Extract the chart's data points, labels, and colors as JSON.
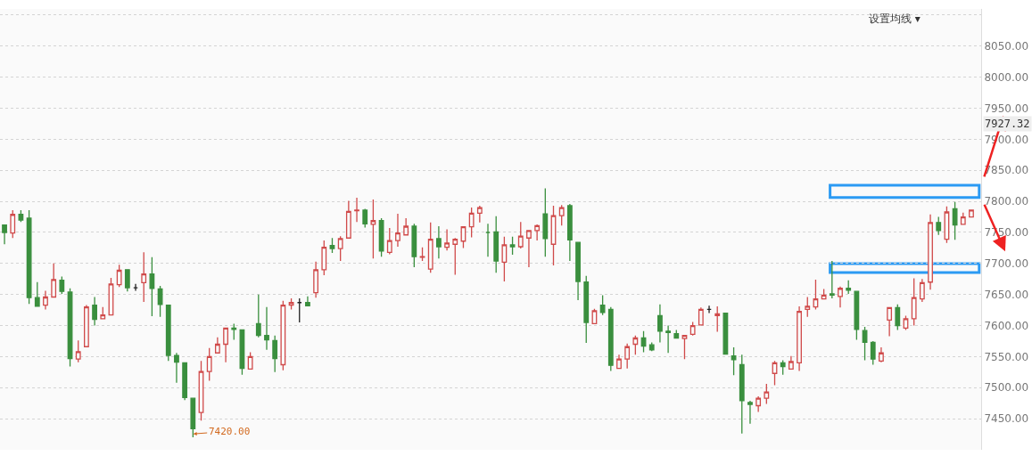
{
  "chart_data": {
    "type": "candlestick",
    "categories": [
      null,
      null,
      null,
      null,
      null,
      null,
      null,
      null,
      null,
      null,
      null,
      null,
      null,
      null,
      null,
      null,
      null,
      null,
      null,
      null,
      null,
      null,
      null,
      null,
      null,
      null,
      null,
      null,
      null,
      null,
      null,
      null,
      null,
      null,
      null,
      null,
      null,
      null,
      null,
      null,
      null,
      null,
      null,
      null,
      null,
      null,
      null,
      null,
      null,
      null,
      null,
      null,
      null,
      null,
      null,
      null,
      null,
      null,
      null,
      null,
      null,
      null,
      null,
      null,
      null,
      null,
      null,
      null,
      null,
      null,
      null,
      null,
      null,
      null,
      null,
      null,
      null,
      null,
      null,
      null,
      null,
      null,
      null,
      null,
      null,
      null,
      null,
      null,
      null,
      null,
      null,
      null,
      null,
      null,
      null,
      null,
      null,
      null,
      null,
      null,
      null,
      null,
      null,
      null,
      null,
      null,
      null,
      null,
      null,
      null,
      null,
      null,
      null,
      null,
      null,
      null,
      null,
      null,
      null
    ],
    "ohlc": [
      [
        7762,
        7762,
        7731,
        7750
      ],
      [
        7749,
        7786,
        7741,
        7779
      ],
      [
        7779,
        7786,
        7767,
        7770
      ],
      [
        7773,
        7786,
        7635,
        7645
      ],
      [
        7645,
        7670,
        7631,
        7631
      ],
      [
        7633,
        7656,
        7626,
        7646
      ],
      [
        7646,
        7700,
        7646,
        7674
      ],
      [
        7673,
        7679,
        7651,
        7655
      ],
      [
        7654,
        7660,
        7534,
        7547
      ],
      [
        7546,
        7576,
        7541,
        7558
      ],
      [
        7566,
        7633,
        7566,
        7630
      ],
      [
        7633,
        7646,
        7600,
        7610
      ],
      [
        7611,
        7630,
        7610,
        7617
      ],
      [
        7617,
        7677,
        7617,
        7667
      ],
      [
        7666,
        7698,
        7662,
        7689
      ],
      [
        7690,
        7690,
        7655,
        7661
      ],
      [
        7661,
        7667,
        7656,
        7661
      ],
      [
        7669,
        7718,
        7638,
        7683
      ],
      [
        7683,
        7710,
        7615,
        7660
      ],
      [
        7659,
        7664,
        7614,
        7634
      ],
      [
        7633,
        7633,
        7543,
        7552
      ],
      [
        7552,
        7556,
        7508,
        7541
      ],
      [
        7540,
        7540,
        7480,
        7484
      ],
      [
        7483,
        7483,
        7420,
        7434
      ],
      [
        7460,
        7543,
        7447,
        7526
      ],
      [
        7526,
        7564,
        7511,
        7550
      ],
      [
        7556,
        7581,
        7556,
        7570
      ],
      [
        7570,
        7596,
        7541,
        7596
      ],
      [
        7596,
        7603,
        7577,
        7594
      ],
      [
        7593,
        7593,
        7521,
        7531
      ],
      [
        7530,
        7557,
        7530,
        7550
      ],
      [
        7603,
        7650,
        7581,
        7584
      ],
      [
        7584,
        7630,
        7561,
        7577
      ],
      [
        7576,
        7584,
        7525,
        7547
      ],
      [
        7537,
        7640,
        7528,
        7633
      ],
      [
        7633,
        7644,
        7626,
        7637
      ],
      [
        7637,
        7644,
        7605,
        7637
      ],
      [
        7637,
        7647,
        7631,
        7632
      ],
      [
        7653,
        7703,
        7645,
        7690
      ],
      [
        7690,
        7737,
        7681,
        7726
      ],
      [
        7729,
        7741,
        7717,
        7724
      ],
      [
        7724,
        7744,
        7704,
        7740
      ],
      [
        7741,
        7801,
        7741,
        7784
      ],
      [
        7785,
        7806,
        7767,
        7786
      ],
      [
        7786,
        7788,
        7758,
        7764
      ],
      [
        7763,
        7803,
        7708,
        7769
      ],
      [
        7769,
        7773,
        7711,
        7720
      ],
      [
        7718,
        7757,
        7715,
        7737
      ],
      [
        7737,
        7780,
        7727,
        7749
      ],
      [
        7746,
        7773,
        7746,
        7760
      ],
      [
        7760,
        7764,
        7694,
        7711
      ],
      [
        7710,
        7726,
        7704,
        7711
      ],
      [
        7691,
        7766,
        7685,
        7739
      ],
      [
        7740,
        7760,
        7708,
        7727
      ],
      [
        7726,
        7755,
        7721,
        7733
      ],
      [
        7731,
        7741,
        7682,
        7739
      ],
      [
        7736,
        7760,
        7725,
        7759
      ],
      [
        7759,
        7790,
        7742,
        7781
      ],
      [
        7781,
        7793,
        7766,
        7790
      ],
      [
        7750,
        7764,
        7711,
        7750
      ],
      [
        7751,
        7776,
        7685,
        7704
      ],
      [
        7702,
        7743,
        7671,
        7730
      ],
      [
        7730,
        7743,
        7714,
        7727
      ],
      [
        7727,
        7767,
        7724,
        7744
      ],
      [
        7741,
        7754,
        7694,
        7753
      ],
      [
        7753,
        7763,
        7737,
        7761
      ],
      [
        7780,
        7821,
        7711,
        7740
      ],
      [
        7731,
        7793,
        7697,
        7777
      ],
      [
        7777,
        7794,
        7761,
        7790
      ],
      [
        7793,
        7796,
        7704,
        7738
      ],
      [
        7734,
        7734,
        7641,
        7671
      ],
      [
        7670,
        7680,
        7572,
        7605
      ],
      [
        7603,
        7627,
        7603,
        7624
      ],
      [
        7633,
        7649,
        7617,
        7621
      ],
      [
        7626,
        7630,
        7527,
        7536
      ],
      [
        7531,
        7553,
        7531,
        7546
      ],
      [
        7546,
        7571,
        7531,
        7566
      ],
      [
        7570,
        7584,
        7553,
        7580
      ],
      [
        7580,
        7591,
        7557,
        7567
      ],
      [
        7569,
        7573,
        7559,
        7561
      ],
      [
        7616,
        7634,
        7573,
        7591
      ],
      [
        7591,
        7600,
        7556,
        7589
      ],
      [
        7587,
        7593,
        7579,
        7580
      ],
      [
        7579,
        7584,
        7546,
        7584
      ],
      [
        7586,
        7606,
        7584,
        7600
      ],
      [
        7601,
        7629,
        7601,
        7626
      ],
      [
        7626,
        7632,
        7620,
        7626
      ],
      [
        7616,
        7631,
        7590,
        7619
      ],
      [
        7620,
        7620,
        7554,
        7554
      ],
      [
        7551,
        7565,
        7520,
        7545
      ],
      [
        7537,
        7553,
        7426,
        7479
      ],
      [
        7476,
        7479,
        7442,
        7473
      ],
      [
        7471,
        7486,
        7461,
        7483
      ],
      [
        7483,
        7506,
        7474,
        7493
      ],
      [
        7523,
        7543,
        7504,
        7540
      ],
      [
        7540,
        7544,
        7521,
        7534
      ],
      [
        7530,
        7551,
        7530,
        7542
      ],
      [
        7540,
        7631,
        7527,
        7623
      ],
      [
        7626,
        7646,
        7614,
        7631
      ],
      [
        7630,
        7674,
        7626,
        7643
      ],
      [
        7643,
        7659,
        7643,
        7649
      ],
      [
        7651,
        7704,
        7644,
        7649
      ],
      [
        7647,
        7663,
        7629,
        7660
      ],
      [
        7660,
        7673,
        7651,
        7657
      ],
      [
        7655,
        7655,
        7577,
        7594
      ],
      [
        7592,
        7598,
        7544,
        7573
      ],
      [
        7573,
        7575,
        7537,
        7546
      ],
      [
        7543,
        7565,
        7541,
        7556
      ],
      [
        7609,
        7629,
        7583,
        7629
      ],
      [
        7629,
        7634,
        7593,
        7600
      ],
      [
        7596,
        7616,
        7593,
        7611
      ],
      [
        7611,
        7676,
        7600,
        7645
      ],
      [
        7643,
        7675,
        7638,
        7669
      ],
      [
        7670,
        7779,
        7658,
        7766
      ],
      [
        7766,
        7775,
        7746,
        7753
      ],
      [
        7739,
        7792,
        7733,
        7783
      ],
      [
        7788,
        7799,
        7738,
        7762
      ],
      [
        7763,
        7782,
        7762,
        7775
      ],
      [
        7775,
        7786,
        7775,
        7786
      ]
    ],
    "colors": [
      "#3a8f3e",
      "#d04a4a",
      "#3a8f3e",
      "#3a8f3e",
      "#3a8f3e",
      "#d04a4a",
      "#d04a4a",
      "#3a8f3e",
      "#3a8f3e",
      "#d04a4a",
      "#d04a4a",
      "#3a8f3e",
      "#d04a4a",
      "#d04a4a",
      "#d04a4a",
      "#3a8f3e",
      "#222222",
      "#d04a4a",
      "#3a8f3e",
      "#3a8f3e",
      "#3a8f3e",
      "#3a8f3e",
      "#3a8f3e",
      "#3a8f3e",
      "#d04a4a",
      "#d04a4a",
      "#d04a4a",
      "#d04a4a",
      "#3a8f3e",
      "#3a8f3e",
      "#d04a4a",
      "#3a8f3e",
      "#3a8f3e",
      "#3a8f3e",
      "#d04a4a",
      "#d04a4a",
      "#222222",
      "#3a8f3e",
      "#d04a4a",
      "#d04a4a",
      "#3a8f3e",
      "#d04a4a",
      "#d04a4a",
      "#d04a4a",
      "#3a8f3e",
      "#d04a4a",
      "#3a8f3e",
      "#d04a4a",
      "#d04a4a",
      "#d04a4a",
      "#3a8f3e",
      "#d04a4a",
      "#d04a4a",
      "#3a8f3e",
      "#d04a4a",
      "#d04a4a",
      "#d04a4a",
      "#d04a4a",
      "#d04a4a",
      "#3a8f3e",
      "#3a8f3e",
      "#d04a4a",
      "#3a8f3e",
      "#d04a4a",
      "#d04a4a",
      "#d04a4a",
      "#3a8f3e",
      "#d04a4a",
      "#d04a4a",
      "#3a8f3e",
      "#3a8f3e",
      "#3a8f3e",
      "#d04a4a",
      "#3a8f3e",
      "#3a8f3e",
      "#d04a4a",
      "#d04a4a",
      "#d04a4a",
      "#3a8f3e",
      "#3a8f3e",
      "#3a8f3e",
      "#3a8f3e",
      "#3a8f3e",
      "#d04a4a",
      "#d04a4a",
      "#d04a4a",
      "#222222",
      "#d04a4a",
      "#3a8f3e",
      "#3a8f3e",
      "#3a8f3e",
      "#3a8f3e",
      "#d04a4a",
      "#d04a4a",
      "#d04a4a",
      "#3a8f3e",
      "#d04a4a",
      "#d04a4a",
      "#d04a4a",
      "#d04a4a",
      "#d04a4a",
      "#3a8f3e",
      "#d04a4a",
      "#3a8f3e",
      "#3a8f3e",
      "#3a8f3e",
      "#3a8f3e",
      "#d04a4a",
      "#d04a4a",
      "#3a8f3e",
      "#d04a4a",
      "#d04a4a",
      "#d04a4a",
      "#d04a4a",
      "#3a8f3e",
      "#d04a4a",
      "#3a8f3e",
      "#d04a4a",
      "#d04a4a"
    ],
    "ylim": [
      7400,
      8110
    ],
    "yticks": [
      {
        "value": 7450,
        "label": "7450.00"
      },
      {
        "value": 7500,
        "label": "7500.00"
      },
      {
        "value": 7550,
        "label": "7550.00"
      },
      {
        "value": 7600,
        "label": "7600.00"
      },
      {
        "value": 7650,
        "label": "7650.00"
      },
      {
        "value": 7700,
        "label": "7700.00"
      },
      {
        "value": 7750,
        "label": "7750.00"
      },
      {
        "value": 7800,
        "label": "7800.00"
      },
      {
        "value": 7850,
        "label": "7850.00"
      },
      {
        "value": 7900,
        "label": "7900.00"
      },
      {
        "value": 7950,
        "label": "7950.00"
      },
      {
        "value": 8000,
        "label": "8000.00"
      },
      {
        "value": 8050,
        "label": "8050.00"
      },
      {
        "value": 8100,
        "label": null
      }
    ],
    "annotations": [
      "7420.00",
      "7927.32",
      "设置均线 ▾"
    ],
    "grid": "y",
    "tick_labels": "y",
    "legend": false
  }
}
